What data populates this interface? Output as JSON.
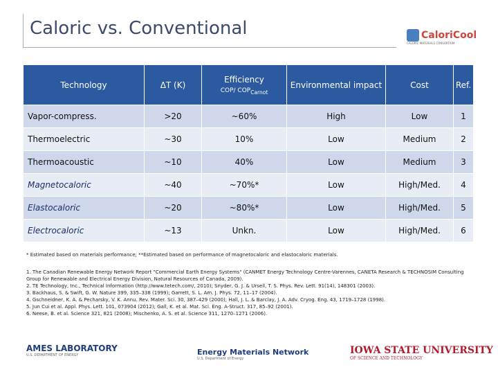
{
  "header": {
    "title": "Caloric vs. Conventional",
    "logo": "CaloriCool",
    "logo_tagline": "CALORIC MATERIALS CONSORTIUM"
  },
  "table": {
    "columns": [
      "Technology",
      "ΔT (K)",
      {
        "label": "Efficiency",
        "sub_label": "COP/ COP",
        "subscript": "Carnot"
      },
      "Environmental impact",
      "Cost",
      "Ref."
    ],
    "rows": [
      [
        "Vapor-compress.",
        ">20",
        "~60%",
        "High",
        "Low",
        1
      ],
      [
        "Thermoelectric",
        "~30",
        "10%",
        "Low",
        "Medium",
        2
      ],
      [
        "Thermoacoustic",
        "~10",
        "40%",
        "Low",
        "Medium",
        3
      ],
      [
        "Magnetocaloric",
        "~40",
        "~70%*",
        "Low",
        "High/Med.",
        4
      ],
      [
        "Elastocaloric",
        "~20",
        "~80%*",
        "Low",
        "High/Med.",
        5
      ],
      [
        "Electrocaloric",
        "~13",
        "Unkn.",
        "Low",
        "High/Med.",
        6
      ]
    ]
  },
  "footnote": "* Estimated based on materials performance; **Estimated based on performance of magnetocaloric and elastocaloric materials.",
  "references": [
    "1. The Canadian Renewable Energy Network Report \"Commercial Earth Energy Systems\" (CANMET Energy Technology Centre-Varennes, CANETA Research & TECHNOSIM Consulting Group for Renewable and Electrical Energy Division, Natural Resources of Canada, 2009).",
    "2. TE Technology, Inc., Technical Information (http://www.tetech.com/, 2010); Snyder, G. J. & Ursell, T. S. Phys. Rev. Lett. 91(14), 148301 (2003).",
    "3. Backhaus, S. & Swift, G. W. Nature 399, 335–338 (1999); Garrett, S. L. Am. J. Phys. 72, 11–17 (2004).",
    "4. Gschneidner, K. A. & Pecharsky, V. K. Annu. Rev. Mater. Sci. 30, 387–429 (2000); Hall, J. L. & Barclay, J. A. Adv. Cryog. Eng. 43, 1719–1728 (1998).",
    "5. Jun Cui et al. Appl. Phys. Lett. 101, 073904 (2012); Gall, K. et al. Mat. Sci. Eng. A-Struct. 317, 85–92 (2001).",
    "6. Neese, B. et al. Science 321, 821 (2008); Mischenko, A. S. et al. Science 311, 1270–1271 (2006)."
  ],
  "footer": {
    "ames": "AMES LABORATORY",
    "ames_tagline": "U.S. DEPARTMENT OF ENERGY",
    "emn": "Energy Materials Network",
    "emn_tagline": "U.S. Department of Energy",
    "isu": "IOWA STATE UNIVERSITY",
    "isu_tagline": "OF SCIENCE AND TECHNOLOGY"
  }
}
